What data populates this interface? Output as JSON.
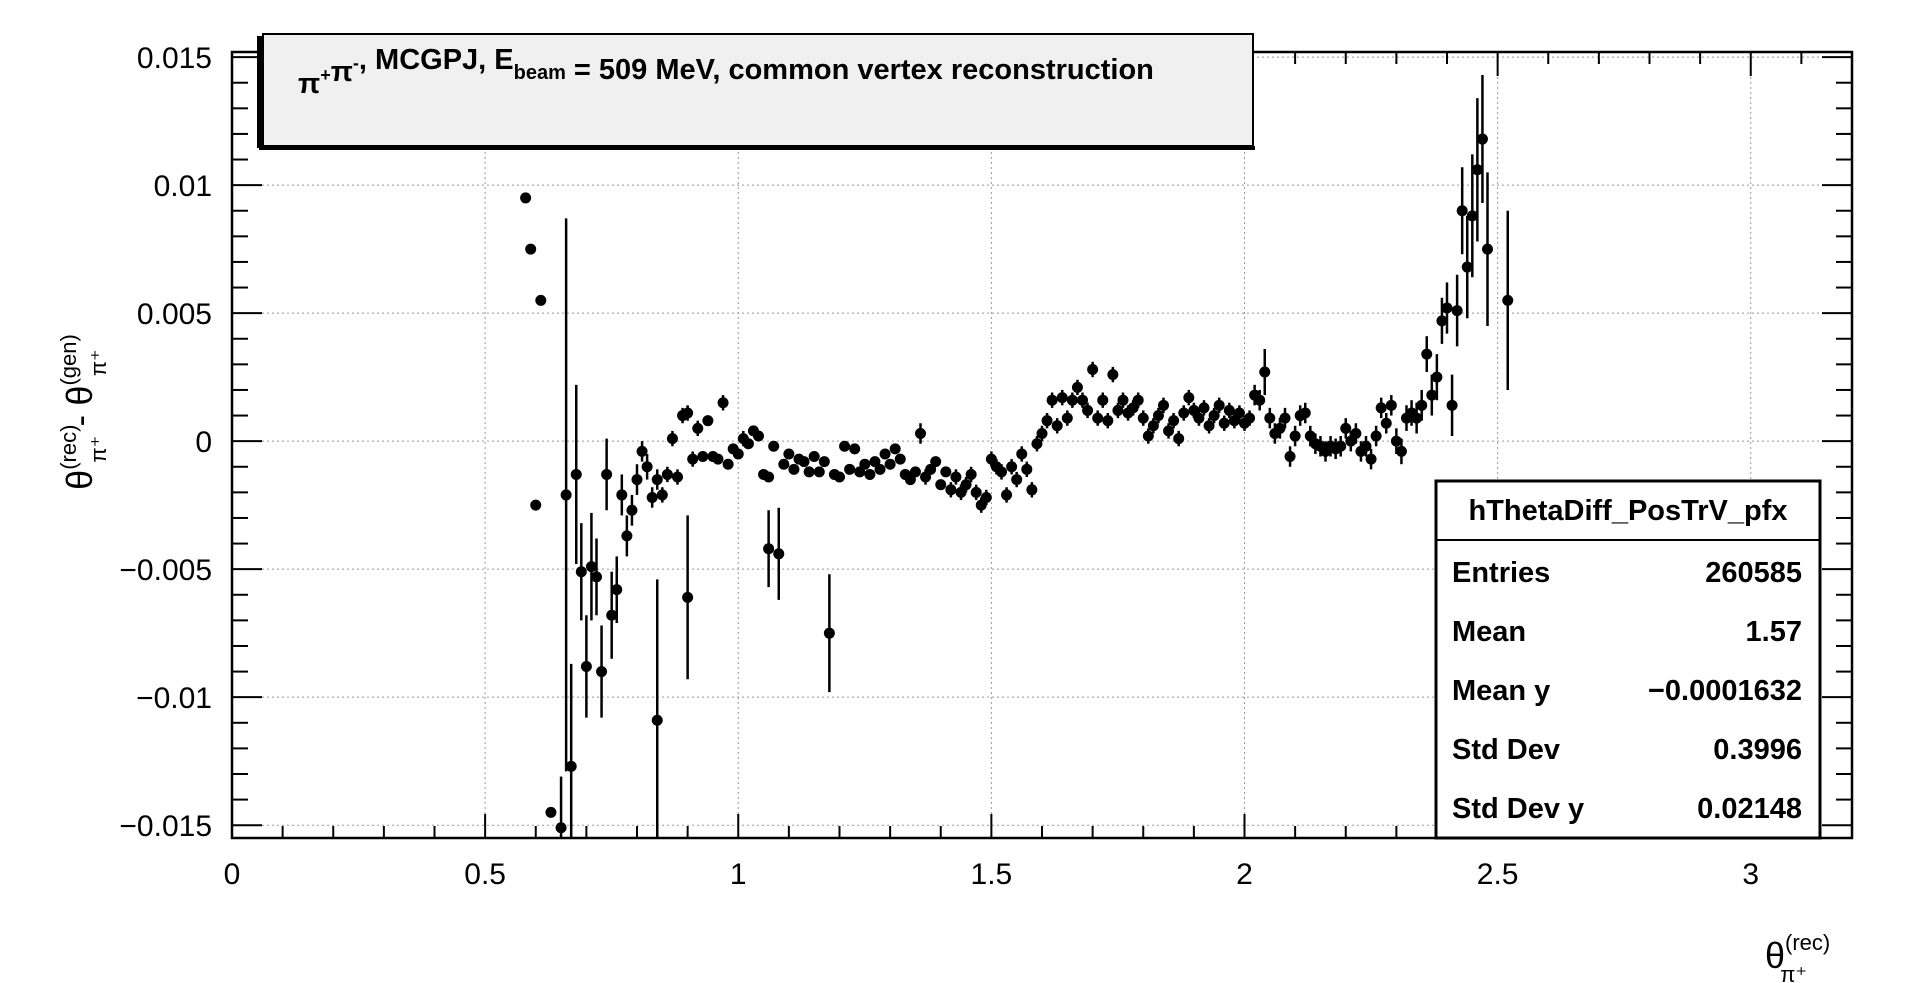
{
  "chart_data": {
    "type": "scatter",
    "title_box": {
      "parts": [
        {
          "text": "π",
          "style": "normal"
        },
        {
          "text": "+",
          "style": "sup"
        },
        {
          "text": "π",
          "style": "normal"
        },
        {
          "text": "-",
          "style": "sup"
        },
        {
          "text": ", MCGPJ, E",
          "style": "normal"
        },
        {
          "text": "beam",
          "style": "sub"
        },
        {
          "text": " = 509 MeV, common vertex reconstruction",
          "style": "normal"
        }
      ]
    },
    "xlabel": {
      "main": "θ",
      "sup": "(rec)",
      "sub": "π⁺"
    },
    "ylabel": {
      "main1": "θ",
      "sup1": "(rec)",
      "sub1": "π⁺",
      "minus": " - ",
      "main2": "θ",
      "sup2": "(gen)",
      "sub2": "π⁺"
    },
    "xlim": [
      0,
      3.2
    ],
    "ylim": [
      -0.0155,
      0.0152
    ],
    "x_ticks": [
      0,
      0.5,
      1,
      1.5,
      2,
      2.5,
      3
    ],
    "x_tick_labels": [
      "0",
      "0.5",
      "1",
      "1.5",
      "2",
      "2.5",
      "3"
    ],
    "y_ticks": [
      -0.015,
      -0.01,
      -0.005,
      0,
      0.005,
      0.01,
      0.015
    ],
    "y_tick_labels": [
      "−0.015",
      "−0.01",
      "−0.005",
      "0",
      "0.005",
      "0.01",
      "0.015"
    ],
    "grid": true,
    "stats": {
      "name": "hThetaDiff_PosTrV_pfx",
      "rows": [
        {
          "label": "Entries",
          "value": "260585"
        },
        {
          "label": "Mean",
          "value": "1.57"
        },
        {
          "label": "Mean y",
          "value": "−0.0001632"
        },
        {
          "label": "Std Dev",
          "value": "0.3996"
        },
        {
          "label": "Std Dev y",
          "value": "0.02148"
        }
      ]
    },
    "series": [
      {
        "points": [
          [
            0.58,
            0.0095,
            0
          ],
          [
            0.59,
            0.0075,
            0
          ],
          [
            0.6,
            -0.0025,
            0
          ],
          [
            0.61,
            0.0055,
            0
          ],
          [
            0.63,
            -0.0145,
            0
          ],
          [
            0.65,
            -0.0151,
            0.002
          ],
          [
            0.66,
            -0.0021,
            0.0108
          ],
          [
            0.67,
            -0.0127,
            0.004
          ],
          [
            0.68,
            -0.0013,
            0.0035
          ],
          [
            0.69,
            -0.0051,
            0.0019
          ],
          [
            0.7,
            -0.0088,
            0.002
          ],
          [
            0.71,
            -0.0049,
            0.0021
          ],
          [
            0.72,
            -0.0053,
            0.0015
          ],
          [
            0.73,
            -0.009,
            0.0018
          ],
          [
            0.74,
            -0.0013,
            0.0014
          ],
          [
            0.75,
            -0.0068,
            0.0017
          ],
          [
            0.76,
            -0.0058,
            0.0013
          ],
          [
            0.77,
            -0.0021,
            0.0008
          ],
          [
            0.78,
            -0.0037,
            0.0008
          ],
          [
            0.79,
            -0.0027,
            0.0006
          ],
          [
            0.8,
            -0.0015,
            0.0006
          ],
          [
            0.81,
            -0.0004,
            0.0004
          ],
          [
            0.82,
            -0.001,
            0.0005
          ],
          [
            0.83,
            -0.0022,
            0.0004
          ],
          [
            0.84,
            -0.0015,
            0.0004
          ],
          [
            0.85,
            -0.0021,
            0.0003
          ],
          [
            0.86,
            -0.0013,
            0.0003
          ],
          [
            0.84,
            -0.0109,
            0.0055
          ],
          [
            0.87,
            0.0001,
            0.0003
          ],
          [
            0.88,
            -0.0014,
            0.0003
          ],
          [
            0.89,
            0.001,
            0.0003
          ],
          [
            0.9,
            0.0011,
            0.0003
          ],
          [
            0.91,
            -0.0007,
            0.0003
          ],
          [
            0.9,
            -0.0061,
            0.0032
          ],
          [
            0.92,
            0.0005,
            0.0003
          ],
          [
            0.93,
            -0.0006,
            0.0002
          ],
          [
            0.94,
            0.0008,
            0.0002
          ],
          [
            0.95,
            -0.0006,
            0.0002
          ],
          [
            0.96,
            -0.0007,
            0.0002
          ],
          [
            0.97,
            0.0015,
            0.0003
          ],
          [
            0.98,
            -0.0009,
            0.0002
          ],
          [
            0.99,
            -0.0003,
            0.0002
          ],
          [
            1.0,
            -0.0005,
            0.0002
          ],
          [
            1.01,
            0.0001,
            0.0003
          ],
          [
            1.02,
            -0.0001,
            0.0002
          ],
          [
            1.03,
            0.0004,
            0.0002
          ],
          [
            1.04,
            0.0002,
            0.0002
          ],
          [
            1.05,
            -0.0013,
            0.0002
          ],
          [
            1.06,
            -0.0014,
            0.0002
          ],
          [
            1.06,
            -0.0042,
            0.0015
          ],
          [
            1.07,
            -0.0002,
            0.0002
          ],
          [
            1.08,
            -0.0044,
            0.0018
          ],
          [
            1.09,
            -0.0009,
            0.0002
          ],
          [
            1.1,
            -0.0005,
            0.0002
          ],
          [
            1.11,
            -0.0011,
            0.0002
          ],
          [
            1.12,
            -0.0007,
            0.0002
          ],
          [
            1.13,
            -0.0008,
            0.0002
          ],
          [
            1.14,
            -0.0012,
            0.0002
          ],
          [
            1.15,
            -0.0006,
            0.0002
          ],
          [
            1.16,
            -0.0012,
            0.0002
          ],
          [
            1.17,
            -0.0008,
            0.0002
          ],
          [
            1.18,
            -0.0075,
            0.0023
          ],
          [
            1.19,
            -0.0013,
            0.0002
          ],
          [
            1.2,
            -0.0014,
            0.0002
          ],
          [
            1.21,
            -0.0002,
            0.0002
          ],
          [
            1.22,
            -0.0011,
            0.0002
          ],
          [
            1.23,
            -0.0003,
            0.0002
          ],
          [
            1.24,
            -0.0012,
            0.0002
          ],
          [
            1.25,
            -0.0009,
            0.0002
          ],
          [
            1.26,
            -0.0013,
            0.0002
          ],
          [
            1.27,
            -0.0008,
            0.0002
          ],
          [
            1.28,
            -0.0011,
            0.0002
          ],
          [
            1.29,
            -0.0005,
            0.0002
          ],
          [
            1.3,
            -0.0009,
            0.0002
          ],
          [
            1.31,
            -0.0003,
            0.0002
          ],
          [
            1.32,
            -0.0007,
            0.0002
          ],
          [
            1.33,
            -0.0013,
            0.0002
          ],
          [
            1.34,
            -0.0015,
            0.0002
          ],
          [
            1.35,
            -0.0012,
            0.0002
          ],
          [
            1.36,
            0.0003,
            0.0004
          ],
          [
            1.37,
            -0.0014,
            0.0003
          ],
          [
            1.38,
            -0.0011,
            0.0002
          ],
          [
            1.39,
            -0.0008,
            0.0002
          ],
          [
            1.4,
            -0.0017,
            0.0002
          ],
          [
            1.41,
            -0.0012,
            0.0002
          ],
          [
            1.42,
            -0.0019,
            0.0003
          ],
          [
            1.43,
            -0.0014,
            0.0003
          ],
          [
            1.44,
            -0.002,
            0.0003
          ],
          [
            1.45,
            -0.0017,
            0.0003
          ],
          [
            1.46,
            -0.0013,
            0.0003
          ],
          [
            1.47,
            -0.002,
            0.0003
          ],
          [
            1.48,
            -0.0025,
            0.0003
          ],
          [
            1.49,
            -0.0022,
            0.0003
          ],
          [
            1.5,
            -0.0007,
            0.0003
          ],
          [
            1.51,
            -0.001,
            0.0003
          ],
          [
            1.52,
            -0.0012,
            0.0003
          ],
          [
            1.53,
            -0.0021,
            0.0003
          ],
          [
            1.54,
            -0.001,
            0.0003
          ],
          [
            1.55,
            -0.0015,
            0.0003
          ],
          [
            1.56,
            -0.0005,
            0.0003
          ],
          [
            1.57,
            -0.0011,
            0.0003
          ],
          [
            1.58,
            -0.0019,
            0.0003
          ],
          [
            1.59,
            -0.0001,
            0.0003
          ],
          [
            1.6,
            0.0003,
            0.0003
          ],
          [
            1.61,
            0.0008,
            0.0003
          ],
          [
            1.62,
            0.0016,
            0.0003
          ],
          [
            1.63,
            0.0006,
            0.0003
          ],
          [
            1.64,
            0.0017,
            0.0003
          ],
          [
            1.65,
            0.0009,
            0.0003
          ],
          [
            1.66,
            0.0016,
            0.0003
          ],
          [
            1.67,
            0.0021,
            0.0003
          ],
          [
            1.68,
            0.0016,
            0.0003
          ],
          [
            1.69,
            0.0012,
            0.0003
          ],
          [
            1.7,
            0.0028,
            0.0003
          ],
          [
            1.71,
            0.0009,
            0.0003
          ],
          [
            1.72,
            0.0016,
            0.0003
          ],
          [
            1.73,
            0.0008,
            0.0003
          ],
          [
            1.74,
            0.0026,
            0.0003
          ],
          [
            1.75,
            0.0012,
            0.0003
          ],
          [
            1.76,
            0.0016,
            0.0003
          ],
          [
            1.77,
            0.0011,
            0.0003
          ],
          [
            1.78,
            0.0013,
            0.0003
          ],
          [
            1.79,
            0.0016,
            0.0003
          ],
          [
            1.8,
            0.0009,
            0.0003
          ],
          [
            1.81,
            0.0002,
            0.0003
          ],
          [
            1.82,
            0.0006,
            0.0003
          ],
          [
            1.83,
            0.001,
            0.0003
          ],
          [
            1.84,
            0.0014,
            0.0003
          ],
          [
            1.85,
            0.0004,
            0.0003
          ],
          [
            1.86,
            0.0008,
            0.0003
          ],
          [
            1.87,
            0.0001,
            0.0003
          ],
          [
            1.88,
            0.0011,
            0.0003
          ],
          [
            1.89,
            0.0017,
            0.0003
          ],
          [
            1.9,
            0.0012,
            0.0003
          ],
          [
            1.91,
            0.0009,
            0.0003
          ],
          [
            1.92,
            0.0013,
            0.0003
          ],
          [
            1.93,
            0.0006,
            0.0003
          ],
          [
            1.94,
            0.001,
            0.0003
          ],
          [
            1.95,
            0.0014,
            0.0003
          ],
          [
            1.96,
            0.0007,
            0.0003
          ],
          [
            1.97,
            0.0012,
            0.0003
          ],
          [
            1.98,
            0.0008,
            0.0003
          ],
          [
            1.99,
            0.0011,
            0.0003
          ],
          [
            2.0,
            0.0007,
            0.0003
          ],
          [
            2.01,
            0.0009,
            0.0003
          ],
          [
            2.02,
            0.0018,
            0.0004
          ],
          [
            2.03,
            0.0016,
            0.0004
          ],
          [
            2.04,
            0.0027,
            0.0009
          ],
          [
            2.05,
            0.0009,
            0.0004
          ],
          [
            2.06,
            0.0003,
            0.0004
          ],
          [
            2.07,
            0.0005,
            0.0004
          ],
          [
            2.08,
            0.0009,
            0.0004
          ],
          [
            2.09,
            -0.0006,
            0.0004
          ],
          [
            2.1,
            0.0002,
            0.0004
          ],
          [
            2.11,
            0.001,
            0.0004
          ],
          [
            2.12,
            0.0011,
            0.0004
          ],
          [
            2.13,
            0.0002,
            0.0004
          ],
          [
            2.14,
            -0.0001,
            0.0004
          ],
          [
            2.15,
            -0.0002,
            0.0004
          ],
          [
            2.16,
            -0.0004,
            0.0004
          ],
          [
            2.17,
            -0.0002,
            0.0004
          ],
          [
            2.18,
            -0.0003,
            0.0004
          ],
          [
            2.19,
            -0.0002,
            0.0004
          ],
          [
            2.2,
            0.0005,
            0.0004
          ],
          [
            2.21,
            0.0,
            0.0004
          ],
          [
            2.22,
            0.0003,
            0.0004
          ],
          [
            2.23,
            -0.0004,
            0.0004
          ],
          [
            2.24,
            -0.0002,
            0.0004
          ],
          [
            2.25,
            -0.0007,
            0.0004
          ],
          [
            2.26,
            0.0002,
            0.0004
          ],
          [
            2.27,
            0.0013,
            0.0004
          ],
          [
            2.28,
            0.0007,
            0.0004
          ],
          [
            2.29,
            0.0014,
            0.0004
          ],
          [
            2.3,
            0.0,
            0.0005
          ],
          [
            2.31,
            -0.0004,
            0.0005
          ],
          [
            2.32,
            0.0009,
            0.0005
          ],
          [
            2.33,
            0.0011,
            0.0005
          ],
          [
            2.34,
            0.0009,
            0.0006
          ],
          [
            2.35,
            0.0014,
            0.0006
          ],
          [
            2.36,
            0.0034,
            0.0007
          ],
          [
            2.37,
            0.0018,
            0.0008
          ],
          [
            2.38,
            0.0025,
            0.0009
          ],
          [
            2.39,
            0.0047,
            0.0009
          ],
          [
            2.4,
            0.0052,
            0.001
          ],
          [
            2.41,
            0.0014,
            0.0012
          ],
          [
            2.42,
            0.0051,
            0.0014
          ],
          [
            2.43,
            0.009,
            0.0017
          ],
          [
            2.44,
            0.0068,
            0.002
          ],
          [
            2.45,
            0.0088,
            0.0024
          ],
          [
            2.46,
            0.0106,
            0.0028
          ],
          [
            2.47,
            0.0118,
            0.0025
          ],
          [
            2.48,
            0.0075,
            0.003
          ],
          [
            2.52,
            0.0055,
            0.0035
          ]
        ]
      }
    ]
  }
}
